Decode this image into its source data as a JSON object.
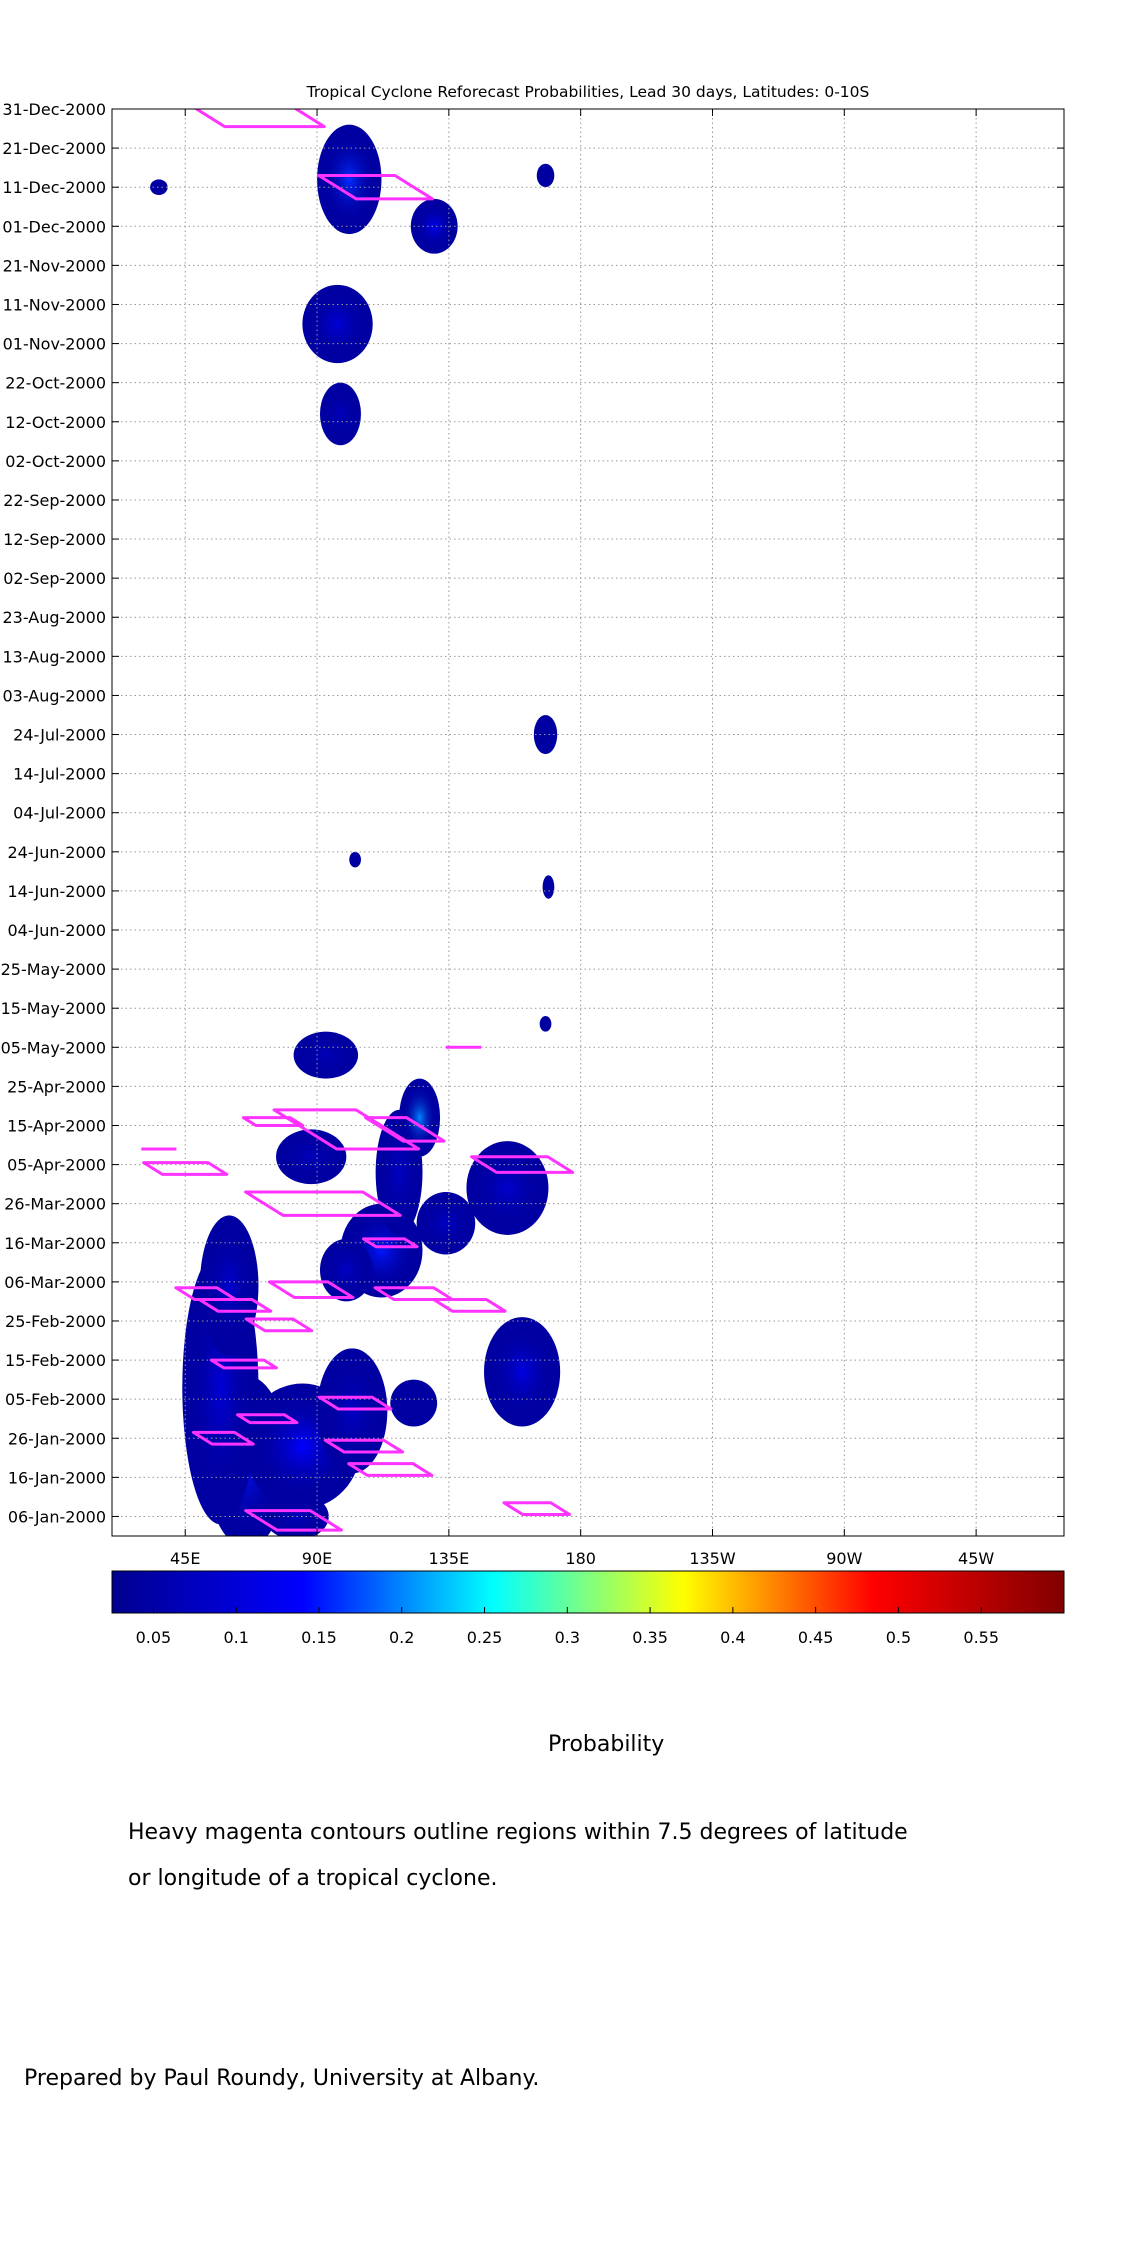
{
  "chart_data": {
    "type": "heatmap",
    "title": "Tropical Cyclone Reforecast Probabilities, Lead 30 days, Latitudes: 0-10S",
    "x_axis": {
      "ticks": [
        {
          "label": "45E",
          "lon": 45
        },
        {
          "label": "90E",
          "lon": 90
        },
        {
          "label": "135E",
          "lon": 135
        },
        {
          "label": "180",
          "lon": 180
        },
        {
          "label": "135W",
          "lon": 225
        },
        {
          "label": "90W",
          "lon": 270
        },
        {
          "label": "45W",
          "lon": 315
        }
      ],
      "range": [
        20,
        345
      ]
    },
    "y_axis": {
      "ticks": [
        "31-Dec-2000",
        "21-Dec-2000",
        "11-Dec-2000",
        "01-Dec-2000",
        "21-Nov-2000",
        "11-Nov-2000",
        "01-Nov-2000",
        "22-Oct-2000",
        "12-Oct-2000",
        "02-Oct-2000",
        "22-Sep-2000",
        "12-Sep-2000",
        "02-Sep-2000",
        "23-Aug-2000",
        "13-Aug-2000",
        "03-Aug-2000",
        "24-Jul-2000",
        "14-Jul-2000",
        "04-Jul-2000",
        "24-Jun-2000",
        "14-Jun-2000",
        "04-Jun-2000",
        "25-May-2000",
        "15-May-2000",
        "05-May-2000",
        "25-Apr-2000",
        "15-Apr-2000",
        "05-Apr-2000",
        "26-Mar-2000",
        "16-Mar-2000",
        "06-Mar-2000",
        "25-Feb-2000",
        "15-Feb-2000",
        "05-Feb-2000",
        "26-Jan-2000",
        "16-Jan-2000",
        "06-Jan-2000"
      ],
      "range": [
        "2000-01-01",
        "2000-12-31"
      ]
    },
    "grid": true,
    "colorbar": {
      "label": "Probability",
      "ticks": [
        "0.05",
        "0.1",
        "0.15",
        "0.2",
        "0.25",
        "0.3",
        "0.35",
        "0.4",
        "0.45",
        "0.5",
        "0.55"
      ],
      "range": [
        0.025,
        0.6
      ]
    },
    "probability_regions": [
      {
        "lon": 66,
        "date": "2000-01-20",
        "rlon": 14,
        "rdays": 22,
        "peak": 0.15
      },
      {
        "lon": 85,
        "date": "2000-01-24",
        "rlon": 20,
        "rdays": 16,
        "peak": 0.14
      },
      {
        "lon": 57,
        "date": "2000-02-08",
        "rlon": 13,
        "rdays": 35,
        "peak": 0.1
      },
      {
        "lon": 60,
        "date": "2000-03-05",
        "rlon": 10,
        "rdays": 18,
        "peak": 0.09
      },
      {
        "lon": 83,
        "date": "2000-01-06",
        "rlon": 11,
        "rdays": 6,
        "peak": 0.07
      },
      {
        "lon": 102,
        "date": "2000-02-02",
        "rlon": 12,
        "rdays": 16,
        "peak": 0.08
      },
      {
        "lon": 112,
        "date": "2000-03-14",
        "rlon": 14,
        "rdays": 12,
        "peak": 0.15
      },
      {
        "lon": 100,
        "date": "2000-03-09",
        "rlon": 9,
        "rdays": 8,
        "peak": 0.08
      },
      {
        "lon": 118,
        "date": "2000-04-03",
        "rlon": 8,
        "rdays": 16,
        "peak": 0.08
      },
      {
        "lon": 125,
        "date": "2000-04-17",
        "rlon": 7,
        "rdays": 10,
        "peak": 0.2
      },
      {
        "lon": 134,
        "date": "2000-03-21",
        "rlon": 10,
        "rdays": 8,
        "peak": 0.08
      },
      {
        "lon": 155,
        "date": "2000-03-30",
        "rlon": 14,
        "rdays": 12,
        "peak": 0.09
      },
      {
        "lon": 160,
        "date": "2000-02-12",
        "rlon": 13,
        "rdays": 14,
        "peak": 0.11
      },
      {
        "lon": 123,
        "date": "2000-02-04",
        "rlon": 8,
        "rdays": 6,
        "peak": 0.06
      },
      {
        "lon": 93,
        "date": "2000-05-03",
        "rlon": 11,
        "rdays": 6,
        "peak": 0.07
      },
      {
        "lon": 88,
        "date": "2000-04-07",
        "rlon": 12,
        "rdays": 7,
        "peak": 0.07
      },
      {
        "lon": 101,
        "date": "2000-12-13",
        "rlon": 11,
        "rdays": 14,
        "peak": 0.16
      },
      {
        "lon": 130,
        "date": "2000-12-01",
        "rlon": 8,
        "rdays": 7,
        "peak": 0.12
      },
      {
        "lon": 97,
        "date": "2000-11-06",
        "rlon": 12,
        "rdays": 10,
        "peak": 0.1
      },
      {
        "lon": 98,
        "date": "2000-10-14",
        "rlon": 7,
        "rdays": 8,
        "peak": 0.07
      },
      {
        "lon": 168,
        "date": "2000-07-24",
        "rlon": 4,
        "rdays": 5,
        "peak": 0.06
      },
      {
        "lon": 168,
        "date": "2000-12-14",
        "rlon": 3,
        "rdays": 3,
        "peak": 0.05
      },
      {
        "lon": 36,
        "date": "2000-12-11",
        "rlon": 3,
        "rdays": 2,
        "peak": 0.05
      },
      {
        "lon": 103,
        "date": "2000-06-22",
        "rlon": 2,
        "rdays": 2,
        "peak": 0.05
      },
      {
        "lon": 169,
        "date": "2000-06-15",
        "rlon": 2,
        "rdays": 3,
        "peak": 0.05
      },
      {
        "lon": 168,
        "date": "2000-05-11",
        "rlon": 2,
        "rdays": 2,
        "peak": 0.05
      }
    ],
    "cyclone_contours": [
      {
        "lon": 82,
        "date": "2000-01-05",
        "w": 22,
        "d": 5
      },
      {
        "lon": 115,
        "date": "2000-01-18",
        "w": 22,
        "d": 3
      },
      {
        "lon": 106,
        "date": "2000-01-24",
        "w": 20,
        "d": 3
      },
      {
        "lon": 58,
        "date": "2000-01-26",
        "w": 14,
        "d": 3
      },
      {
        "lon": 73,
        "date": "2000-01-31",
        "w": 16,
        "d": 2
      },
      {
        "lon": 103,
        "date": "2000-02-04",
        "w": 18,
        "d": 3
      },
      {
        "lon": 65,
        "date": "2000-02-14",
        "w": 18,
        "d": 2
      },
      {
        "lon": 77,
        "date": "2000-02-24",
        "w": 16,
        "d": 3
      },
      {
        "lon": 52,
        "date": "2000-03-03",
        "w": 14,
        "d": 3
      },
      {
        "lon": 62,
        "date": "2000-02-29",
        "w": 18,
        "d": 3
      },
      {
        "lon": 88,
        "date": "2000-03-04",
        "w": 20,
        "d": 4
      },
      {
        "lon": 123,
        "date": "2000-03-03",
        "w": 20,
        "d": 3
      },
      {
        "lon": 142,
        "date": "2000-02-29",
        "w": 18,
        "d": 3
      },
      {
        "lon": 115,
        "date": "2000-03-16",
        "w": 14,
        "d": 2
      },
      {
        "lon": 92,
        "date": "2000-03-26",
        "w": 40,
        "d": 6
      },
      {
        "lon": 45,
        "date": "2000-04-04",
        "w": 22,
        "d": 3
      },
      {
        "lon": 160,
        "date": "2000-04-05",
        "w": 26,
        "d": 4
      },
      {
        "lon": 100,
        "date": "2000-04-14",
        "w": 28,
        "d": 10
      },
      {
        "lon": 120,
        "date": "2000-04-14",
        "w": 14,
        "d": 6
      },
      {
        "lon": 75,
        "date": "2000-04-16",
        "w": 16,
        "d": 2
      },
      {
        "lon": 165,
        "date": "2000-01-08",
        "w": 16,
        "d": 3
      },
      {
        "lon": 68,
        "date": "2000-12-30",
        "w": 34,
        "d": 7
      },
      {
        "lon": 110,
        "date": "2000-12-11",
        "w": 26,
        "d": 6
      }
    ],
    "cyclone_ticks": [
      {
        "lon": 36,
        "date": "2000-04-09",
        "w": 12
      },
      {
        "lon": 140,
        "date": "2000-05-05",
        "w": 12
      }
    ]
  },
  "colors": {
    "cyclone_contour": "#ff33ff",
    "grid": "#999999",
    "colormap": [
      "#00008f",
      "#0000ff",
      "#00ffff",
      "#ffff00",
      "#ff0000",
      "#800000"
    ]
  },
  "captions": {
    "colorbar_label": "Probability",
    "note_line1": "Heavy magenta contours outline regions within 7.5 degrees of latitude",
    "note_line2": "or longitude of a tropical cyclone.",
    "credit": "Prepared by Paul Roundy, University at Albany."
  }
}
